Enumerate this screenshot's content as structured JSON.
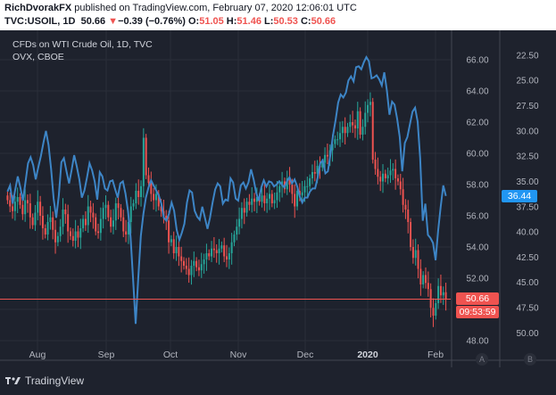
{
  "header": {
    "author": "RichDvorakFX",
    "published": " published on TradingView.com, February 07, 2020 12:06:01 UTC",
    "symbol_line": "TVC:USOIL, 1D",
    "last": "50.66",
    "change_symbol": "▼",
    "change": "−0.39 (−0.76%)",
    "o_label": "O:",
    "o_value": "51.05",
    "h_label": "H:",
    "h_value": "51.46",
    "l_label": "L:",
    "l_value": "50.53",
    "c_label": "C:",
    "c_value": "50.66"
  },
  "legend": {
    "main_series": "CFDs on WTI Crude Oil, 1D, TVC",
    "second_series": "OVX, CBOE"
  },
  "tags": {
    "ovx_last": "36.44",
    "price_last": "50.66",
    "countdown": "09:53:59"
  },
  "scale_buttons": {
    "a": "A",
    "b": "B"
  },
  "footer": {
    "brand": "TradingView"
  },
  "colors": {
    "background": "#1e222d",
    "up": "#26a69a",
    "down": "#ef5350",
    "ovx": "#3d85c6",
    "grid": "#2a2e39"
  },
  "chart_data": {
    "type": "line",
    "x_tick_labels": [
      "Aug",
      "Sep",
      "Oct",
      "Nov",
      "Dec",
      "2020",
      "Feb"
    ],
    "left_axis": {
      "ticks": [
        "66.00",
        "64.00",
        "62.00",
        "60.00",
        "58.00",
        "56.00",
        "54.00",
        "52.00",
        "50.00",
        "48.00"
      ],
      "ylim": [
        47.2,
        67.2
      ]
    },
    "right_axis": {
      "ticks": [
        "22.50",
        "25.00",
        "27.50",
        "30.00",
        "32.50",
        "35.00",
        "37.50",
        "40.00",
        "42.50",
        "45.00",
        "47.50",
        "50.00"
      ],
      "ylim": [
        21.1,
        52.0
      ],
      "inverted": true
    },
    "price_close": [
      57.0,
      56.6,
      56.3,
      56.9,
      57.2,
      56.7,
      56.1,
      57.0,
      56.8,
      55.9,
      55.4,
      56.2,
      56.9,
      56.0,
      55.2,
      54.8,
      55.6,
      55.9,
      55.1,
      54.3,
      54.7,
      55.3,
      56.4,
      56.1,
      55.0,
      54.7,
      54.4,
      55.0,
      54.6,
      55.2,
      55.8,
      55.4,
      56.6,
      56.2,
      55.9,
      55.0,
      54.9,
      55.8,
      56.5,
      56.7,
      55.9,
      55.3,
      55.7,
      56.8,
      56.5,
      55.9,
      55.0,
      54.8,
      55.6,
      56.6,
      56.8,
      57.6,
      57.2,
      57.9,
      61.0,
      58.6,
      58.1,
      57.4,
      57.0,
      57.4,
      56.6,
      56.3,
      56.0,
      55.7,
      54.3,
      54.5,
      53.6,
      54.0,
      53.4,
      53.1,
      52.8,
      52.6,
      52.2,
      52.8,
      53.1,
      52.7,
      52.5,
      52.9,
      53.2,
      53.6,
      53.4,
      53.9,
      53.8,
      53.6,
      53.9,
      54.1,
      53.4,
      53.2,
      53.6,
      54.3,
      54.8,
      55.3,
      55.8,
      56.5,
      56.2,
      56.9,
      56.7,
      57.1,
      56.9,
      57.2,
      56.9,
      57.3,
      56.8,
      57.1,
      57.4,
      56.8,
      57.0,
      57.5,
      57.9,
      58.2,
      57.7,
      58.4,
      58.0,
      57.4,
      56.6,
      57.6,
      57.3,
      57.5,
      57.9,
      57.9,
      58.4,
      58.8,
      58.7,
      59.2,
      59.1,
      59.4,
      59.9,
      59.8,
      60.2,
      60.6,
      60.9,
      60.9,
      61.3,
      61.7,
      61.3,
      61.7,
      62.0,
      61.8,
      61.6,
      62.7,
      61.2,
      61.7,
      62.6,
      63.1,
      63.3,
      59.6,
      59.0,
      58.5,
      58.2,
      58.7,
      58.4,
      58.6,
      58.9,
      59.0,
      58.4,
      58.2,
      57.7,
      56.7,
      56.4,
      55.6,
      54.0,
      53.3,
      53.8,
      52.6,
      51.6,
      52.2,
      51.7,
      51.3,
      50.1,
      49.6,
      50.4,
      51.5,
      50.9,
      51.1,
      50.66
    ],
    "ovx": [
      36.0,
      35.4,
      37.2,
      35.8,
      34.5,
      35.6,
      36.9,
      35.1,
      33.2,
      32.6,
      33.4,
      34.8,
      33.6,
      32.5,
      31.2,
      30.0,
      31.4,
      33.8,
      36.7,
      38.6,
      36.4,
      33.1,
      32.7,
      34.0,
      35.2,
      33.9,
      32.4,
      33.5,
      34.8,
      36.6,
      35.9,
      34.6,
      33.2,
      33.9,
      35.0,
      36.8,
      34.1,
      34.5,
      35.7,
      35.9,
      35.0,
      34.9,
      35.8,
      36.6,
      35.2,
      35.0,
      36.2,
      37.9,
      40.5,
      44.8,
      49.1,
      44.6,
      40.4,
      38.2,
      36.6,
      35.6,
      34.9,
      35.4,
      35.9,
      36.4,
      37.2,
      38.6,
      38.9,
      38.2,
      37.1,
      37.9,
      39.8,
      40.8,
      40.1,
      39.2,
      37.1,
      35.9,
      36.1,
      37.9,
      38.5,
      38.8,
      37.5,
      38.6,
      39.7,
      38.6,
      37.1,
      35.8,
      35.2,
      35.5,
      37.2,
      36.8,
      36.9,
      34.7,
      35.1,
      36.7,
      36.9,
      35.4,
      35.1,
      35.7,
      35.1,
      33.8,
      34.8,
      36.1,
      36.9,
      35.6,
      34.9,
      35.5,
      35.0,
      35.1,
      35.5,
      35.3,
      35.0,
      35.3,
      35.6,
      35.0,
      34.6,
      35.2,
      34.8,
      35.5,
      36.5,
      37.1,
      36.6,
      36.6,
      36.0,
      35.7,
      35.7,
      34.6,
      33.2,
      32.9,
      34.2,
      34.0,
      32.3,
      30.4,
      28.9,
      27.2,
      26.4,
      26.7,
      26.2,
      25.0,
      24.6,
      25.1,
      23.7,
      23.6,
      23.9,
      23.2,
      22.7,
      23.1,
      24.8,
      24.7,
      24.5,
      24.9,
      25.5,
      24.2,
      26.0,
      28.4,
      27.1,
      27.4,
      28.8,
      30.6,
      34.0,
      31.2,
      30.6,
      29.3,
      28.1,
      27.7,
      29.1,
      32.7,
      38.9,
      37.2,
      40.3,
      40.6,
      41.1,
      42.8,
      39.9,
      37.5,
      35.4,
      36.44
    ]
  }
}
